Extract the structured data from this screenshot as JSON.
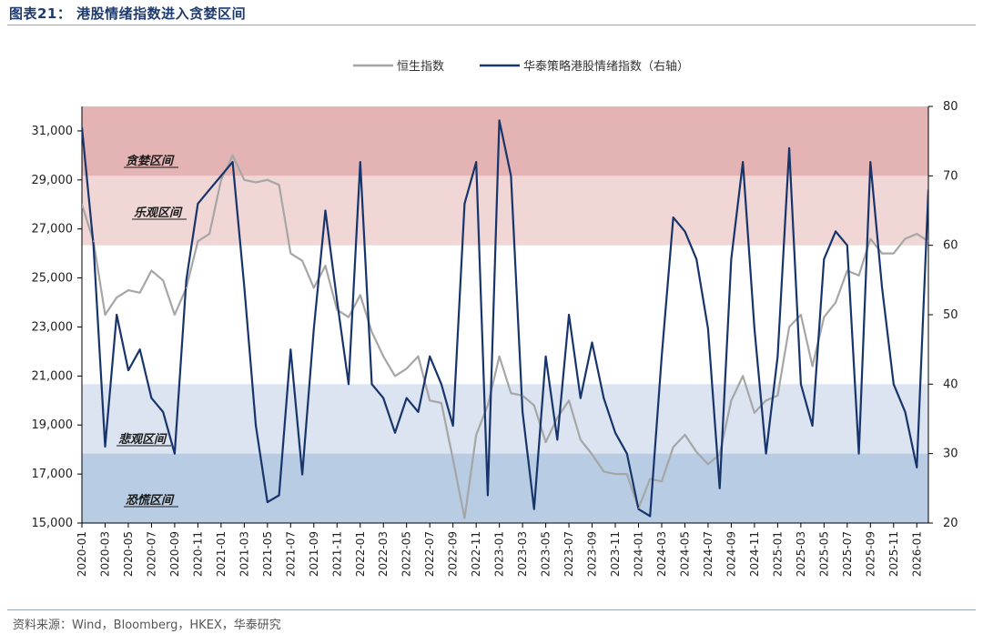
{
  "figure": {
    "title": "图表21：  港股情绪指数进入贪婪区间",
    "source": "资料来源：Wind，Bloomberg，HKEX，华泰研究"
  },
  "colors": {
    "hsi": "#a6a6a6",
    "sentiment": "#17346b",
    "zone_greed": "#e4b4b4",
    "zone_optimism": "#f1d6d6",
    "zone_pessimism": "#dbe4f0",
    "zone_panic": "#b8cce4"
  },
  "chart_data": {
    "type": "line",
    "title": "",
    "legend": {
      "position": "top-right",
      "entries": [
        "恒生指数",
        "华泰策略港股情绪指数（右轴）"
      ]
    },
    "grid": false,
    "y_left": {
      "label": "",
      "range": [
        15000,
        32000
      ],
      "ticks": [
        "15,000",
        "17,000",
        "19,000",
        "21,000",
        "23,000",
        "25,000",
        "27,000",
        "29,000",
        "31,000"
      ],
      "tick_values": [
        15000,
        17000,
        19000,
        21000,
        23000,
        25000,
        27000,
        29000,
        31000
      ]
    },
    "y_right": {
      "label": "",
      "range": [
        20,
        80
      ],
      "ticks": [
        "20",
        "30",
        "40",
        "50",
        "60",
        "70",
        "80"
      ],
      "tick_values": [
        20,
        30,
        40,
        50,
        60,
        70,
        80
      ]
    },
    "x": {
      "categories": [
        "2020-01",
        "2020-02",
        "2020-03",
        "2020-04",
        "2020-05",
        "2020-06",
        "2020-07",
        "2020-08",
        "2020-09",
        "2020-10",
        "2020-11",
        "2020-12",
        "2021-01",
        "2021-02",
        "2021-03",
        "2021-04",
        "2021-05",
        "2021-06",
        "2021-07",
        "2021-08",
        "2021-09",
        "2021-10",
        "2021-11",
        "2021-12",
        "2022-01",
        "2022-02",
        "2022-03",
        "2022-04",
        "2022-05",
        "2022-06",
        "2022-07",
        "2022-08",
        "2022-09",
        "2022-10",
        "2022-11",
        "2022-12",
        "2023-01",
        "2023-02",
        "2023-03",
        "2023-04",
        "2023-05",
        "2023-06",
        "2023-07",
        "2023-08",
        "2023-09",
        "2023-10",
        "2023-11",
        "2023-12",
        "2024-01",
        "2024-02",
        "2024-03",
        "2024-04",
        "2024-05",
        "2024-06",
        "2024-07",
        "2024-08",
        "2024-09",
        "2024-10",
        "2024-11",
        "2024-12",
        "2025-01",
        "2025-02",
        "2025-03",
        "2025-04",
        "2025-05",
        "2025-06",
        "2025-07",
        "2025-08",
        "2025-09",
        "2025-10",
        "2025-11",
        "2025-12",
        "2026-01",
        "2026-02"
      ],
      "tick_labels": [
        "2020-01",
        "2020-03",
        "2020-05",
        "2020-07",
        "2020-09",
        "2020-11",
        "2021-01",
        "2021-03",
        "2021-05",
        "2021-07",
        "2021-09",
        "2021-11",
        "2022-01",
        "2022-03",
        "2022-05",
        "2022-07",
        "2022-09",
        "2022-11",
        "2023-01",
        "2023-03",
        "2023-05",
        "2023-07",
        "2023-09",
        "2023-11",
        "2024-01",
        "2024-03",
        "2024-05",
        "2024-07",
        "2024-09",
        "2024-11",
        "2025-01",
        "2025-03",
        "2025-05",
        "2025-07",
        "2025-09",
        "2025-11",
        "2026-01"
      ]
    },
    "zones": [
      {
        "name": "贪婪区间",
        "from": 70,
        "to": 80
      },
      {
        "name": "乐观区间",
        "from": 60,
        "to": 70
      },
      {
        "name": "悲观区间",
        "from": 30,
        "to": 40
      },
      {
        "name": "恐慌区间",
        "from": 20,
        "to": 30
      }
    ],
    "series": [
      {
        "name": "恒生指数",
        "axis": "left",
        "values": [
          28000,
          26500,
          23500,
          24200,
          24500,
          24400,
          25300,
          24900,
          23500,
          24600,
          26500,
          26800,
          29000,
          30000,
          29000,
          28900,
          29000,
          28800,
          26000,
          25700,
          24600,
          25500,
          23700,
          23400,
          24300,
          22800,
          21800,
          21000,
          21300,
          21800,
          20000,
          19900,
          17600,
          15200,
          18600,
          19800,
          21800,
          20300,
          20200,
          19800,
          18300,
          19300,
          20000,
          18400,
          17800,
          17100,
          17000,
          17000,
          15600,
          16800,
          16700,
          18100,
          18600,
          17900,
          17400,
          17800,
          20000,
          21000,
          19500,
          20000,
          20200,
          23000,
          23500,
          21400,
          23400,
          24000,
          25300,
          25100,
          26600,
          26000,
          26000,
          26600,
          26800,
          26500
        ]
      },
      {
        "name": "华泰策略港股情绪指数（右轴）",
        "axis": "right",
        "values": [
          77,
          60,
          31,
          50,
          42,
          45,
          38,
          36,
          30,
          55,
          66,
          68,
          70,
          72,
          54,
          34,
          23,
          24,
          45,
          27,
          48,
          65,
          52,
          40,
          72,
          40,
          38,
          33,
          38,
          36,
          44,
          40,
          34,
          66,
          72,
          24,
          78,
          70,
          36,
          22,
          44,
          32,
          50,
          38,
          46,
          38,
          33,
          30,
          22,
          21,
          44,
          64,
          62,
          58,
          48,
          25,
          58,
          72,
          48,
          30,
          44,
          74,
          40,
          34,
          58,
          62,
          60,
          30,
          72,
          54,
          40,
          36,
          28,
          68
        ]
      }
    ]
  }
}
